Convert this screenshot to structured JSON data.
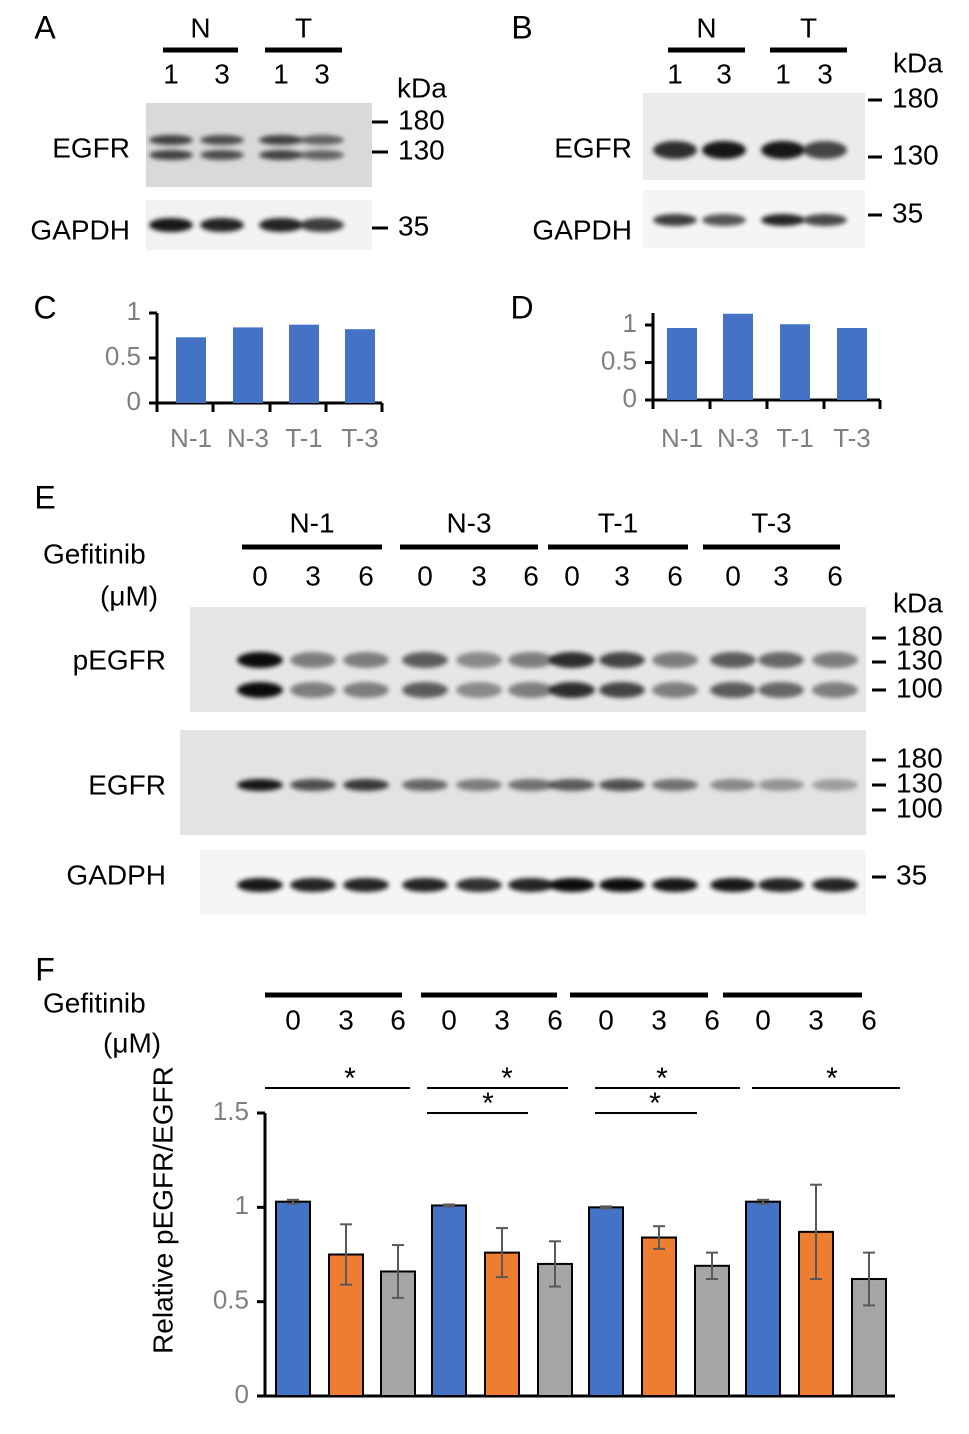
{
  "panels": {
    "A": {
      "letter": "A",
      "groups": [
        "N",
        "T"
      ],
      "lanes": [
        "1",
        "3",
        "1",
        "3"
      ],
      "unit": "kDa",
      "rows": [
        {
          "label": "EGFR",
          "markers": [
            "180",
            "130"
          ]
        },
        {
          "label": "GAPDH",
          "markers": [
            "35"
          ]
        }
      ]
    },
    "B": {
      "letter": "B",
      "groups": [
        "N",
        "T"
      ],
      "lanes": [
        "1",
        "3",
        "1",
        "3"
      ],
      "unit": "kDa",
      "rows": [
        {
          "label": "EGFR",
          "markers": [
            "180",
            "130"
          ]
        },
        {
          "label": "GAPDH",
          "markers": [
            "35"
          ]
        }
      ]
    },
    "E": {
      "letter": "E",
      "treatment": "Gefitinib",
      "treatment_unit": "(μM)",
      "groups": [
        "N-1",
        "N-3",
        "T-1",
        "T-3"
      ],
      "lanes": [
        "0",
        "3",
        "6",
        "0",
        "3",
        "6",
        "0",
        "3",
        "6",
        "0",
        "3",
        "6"
      ],
      "unit": "kDa",
      "rows": [
        {
          "label": "pEGFR",
          "markers": [
            "180",
            "130",
            "100"
          ]
        },
        {
          "label": "EGFR",
          "markers": [
            "180",
            "130",
            "100"
          ]
        },
        {
          "label": "GADPH",
          "markers": [
            "35"
          ]
        }
      ]
    }
  },
  "chart_data": [
    {
      "type": "bar",
      "panel": "C",
      "categories": [
        "N-1",
        "N-3",
        "T-1",
        "T-3"
      ],
      "values": [
        0.73,
        0.84,
        0.87,
        0.82
      ],
      "color": "#4472c4",
      "ylim": [
        0,
        1
      ],
      "yticks": [
        0,
        0.5,
        1
      ]
    },
    {
      "type": "bar",
      "panel": "D",
      "categories": [
        "N-1",
        "N-3",
        "T-1",
        "T-3"
      ],
      "values": [
        0.96,
        1.15,
        1.01,
        0.96
      ],
      "color": "#4472c4",
      "ylim": [
        0,
        1.16
      ],
      "yticks": [
        0,
        0.5,
        1
      ]
    },
    {
      "type": "bar",
      "panel": "F",
      "treatment": "Gefitinib",
      "treatment_unit": "(μM)",
      "ylabel": "Relative pEGFR/EGFR",
      "categories": [
        "0",
        "3",
        "6",
        "0",
        "3",
        "6",
        "0",
        "3",
        "6",
        "0",
        "3",
        "6"
      ],
      "values": [
        1.03,
        0.75,
        0.66,
        1.01,
        0.76,
        0.7,
        1.0,
        0.84,
        0.69,
        1.03,
        0.87,
        0.62
      ],
      "errors": [
        0.01,
        0.16,
        0.14,
        0.005,
        0.13,
        0.12,
        0.005,
        0.06,
        0.07,
        0.01,
        0.25,
        0.14
      ],
      "colors": [
        "#4472c4",
        "#ed7d31",
        "#a5a5a5"
      ],
      "ylim": [
        0,
        1.5
      ],
      "yticks": [
        0,
        0.5,
        1,
        1.5
      ],
      "annotations": [
        "*",
        "*",
        "*",
        "*",
        "*",
        "*"
      ]
    }
  ]
}
